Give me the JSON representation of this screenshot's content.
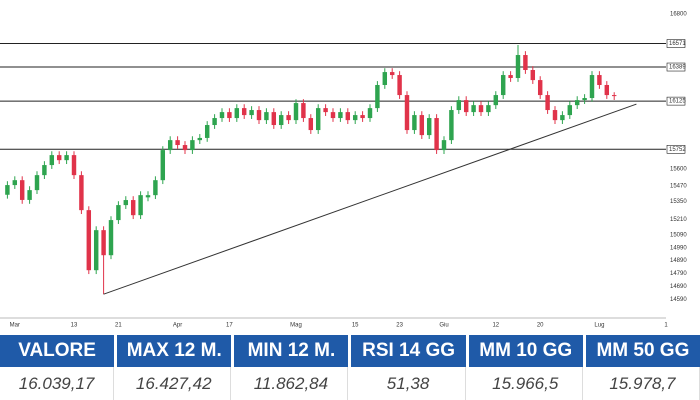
{
  "chart_data": {
    "type": "candlestick",
    "up_color": "#2ea44f",
    "down_color": "#e0334a",
    "xlim": [
      -1,
      89
    ],
    "xticks": [
      {
        "value": 1,
        "label": "Mar"
      },
      {
        "value": 9,
        "label": "13"
      },
      {
        "value": 15,
        "label": "21"
      },
      {
        "value": 23,
        "label": "Apr"
      },
      {
        "value": 30,
        "label": "17"
      },
      {
        "value": 39,
        "label": "Mag"
      },
      {
        "value": 47,
        "label": "15"
      },
      {
        "value": 53,
        "label": "23"
      },
      {
        "value": 59,
        "label": "Giu"
      },
      {
        "value": 66,
        "label": "12"
      },
      {
        "value": 72,
        "label": "20"
      },
      {
        "value": 80,
        "label": "Lug"
      },
      {
        "value": 89,
        "label": "1"
      }
    ],
    "ylim": [
      14500,
      16850
    ],
    "yticks": [
      16800,
      15600,
      15470,
      15350,
      15210,
      15090,
      14990,
      14890,
      14790,
      14690,
      14590
    ],
    "levels": [
      16571,
      16389,
      16125,
      15752
    ],
    "trendline": {
      "x": [
        13,
        85
      ],
      "y": [
        14630,
        16102
      ]
    },
    "ohlc": [
      [
        15400,
        15505,
        15370,
        15475
      ],
      [
        15475,
        15543,
        15445,
        15513
      ],
      [
        15513,
        15543,
        15330,
        15360
      ],
      [
        15360,
        15466,
        15330,
        15436
      ],
      [
        15436,
        15582,
        15406,
        15552
      ],
      [
        15552,
        15660,
        15522,
        15630
      ],
      [
        15630,
        15737,
        15600,
        15707
      ],
      [
        15707,
        15737,
        15638,
        15668
      ],
      [
        15668,
        15737,
        15638,
        15707
      ],
      [
        15707,
        15737,
        15522,
        15552
      ],
      [
        15552,
        15582,
        15251,
        15281
      ],
      [
        15281,
        15311,
        14786,
        14816
      ],
      [
        14816,
        15156,
        14786,
        15126
      ],
      [
        15126,
        15156,
        14630,
        14932
      ],
      [
        14932,
        15234,
        14902,
        15204
      ],
      [
        15204,
        15350,
        15174,
        15320
      ],
      [
        15320,
        15389,
        15290,
        15359
      ],
      [
        15359,
        15389,
        15212,
        15242
      ],
      [
        15242,
        15427,
        15212,
        15397
      ],
      [
        15380,
        15427,
        15350,
        15397
      ],
      [
        15397,
        15543,
        15367,
        15513
      ],
      [
        15513,
        15776,
        15483,
        15746
      ],
      [
        15746,
        15853,
        15716,
        15823
      ],
      [
        15823,
        15853,
        15755,
        15785
      ],
      [
        15785,
        15815,
        15716,
        15746
      ],
      [
        15746,
        15853,
        15716,
        15823
      ],
      [
        15823,
        15870,
        15793,
        15840
      ],
      [
        15840,
        15970,
        15810,
        15940
      ],
      [
        15940,
        16024,
        15910,
        15994
      ],
      [
        15994,
        16070,
        15964,
        16040
      ],
      [
        16040,
        16070,
        15964,
        15994
      ],
      [
        15994,
        16101,
        15964,
        16071
      ],
      [
        16071,
        16101,
        15987,
        16017
      ],
      [
        16017,
        16086,
        15987,
        16056
      ],
      [
        16056,
        16086,
        15948,
        15978
      ],
      [
        15978,
        16070,
        15948,
        16040
      ],
      [
        16040,
        16070,
        15910,
        15940
      ],
      [
        15940,
        16047,
        15910,
        16017
      ],
      [
        16017,
        16047,
        15948,
        15978
      ],
      [
        15978,
        16140,
        15948,
        16110
      ],
      [
        16110,
        16140,
        15964,
        15994
      ],
      [
        15994,
        16024,
        15871,
        15901
      ],
      [
        15901,
        16101,
        15871,
        16071
      ],
      [
        16071,
        16101,
        16010,
        16040
      ],
      [
        16040,
        16070,
        15964,
        15994
      ],
      [
        15994,
        16070,
        15964,
        16040
      ],
      [
        16040,
        16070,
        15948,
        15978
      ],
      [
        15978,
        16047,
        15948,
        16017
      ],
      [
        16017,
        16047,
        15964,
        15994
      ],
      [
        15994,
        16101,
        15964,
        16071
      ],
      [
        16071,
        16280,
        16041,
        16250
      ],
      [
        16250,
        16380,
        16220,
        16350
      ],
      [
        16350,
        16380,
        16297,
        16327
      ],
      [
        16327,
        16357,
        16142,
        16172
      ],
      [
        16172,
        16202,
        15871,
        15901
      ],
      [
        15901,
        16047,
        15871,
        16017
      ],
      [
        16017,
        16047,
        15832,
        15862
      ],
      [
        15862,
        16024,
        15832,
        15994
      ],
      [
        15994,
        16024,
        15716,
        15746
      ],
      [
        15746,
        15853,
        15716,
        15823
      ],
      [
        15823,
        16086,
        15793,
        16056
      ],
      [
        16056,
        16163,
        16026,
        16133
      ],
      [
        16133,
        16163,
        16010,
        16040
      ],
      [
        16040,
        16124,
        16010,
        16094
      ],
      [
        16094,
        16124,
        16010,
        16040
      ],
      [
        16040,
        16124,
        16010,
        16094
      ],
      [
        16094,
        16202,
        16064,
        16172
      ],
      [
        16172,
        16357,
        16142,
        16327
      ],
      [
        16327,
        16357,
        16274,
        16304
      ],
      [
        16304,
        16560,
        16274,
        16482
      ],
      [
        16482,
        16512,
        16336,
        16366
      ],
      [
        16366,
        16396,
        16258,
        16288
      ],
      [
        16288,
        16318,
        16142,
        16172
      ],
      [
        16172,
        16202,
        16026,
        16056
      ],
      [
        16056,
        16086,
        15948,
        15978
      ],
      [
        15978,
        16047,
        15948,
        16017
      ],
      [
        16017,
        16124,
        15987,
        16094
      ],
      [
        16094,
        16163,
        16064,
        16133
      ],
      [
        16133,
        16179,
        16103,
        16149
      ],
      [
        16149,
        16357,
        16119,
        16327
      ],
      [
        16327,
        16357,
        16220,
        16250
      ],
      [
        16250,
        16280,
        16142,
        16172
      ],
      [
        16172,
        16194,
        16134,
        16164
      ]
    ]
  },
  "table": {
    "headers": [
      "VALORE",
      "MAX 12 M.",
      "MIN 12 M.",
      "RSI 14 GG",
      "MM 10 GG",
      "MM 50 GG"
    ],
    "values": [
      "16.039,17",
      "16.427,42",
      "11.862,84",
      "51,38",
      "15.966,5",
      "15.978,7"
    ]
  }
}
